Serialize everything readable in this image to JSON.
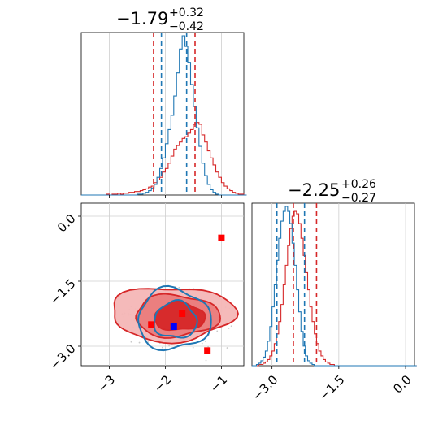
{
  "chart_data": {
    "type": "corner",
    "series_colors": {
      "red": "#d62728",
      "blue": "#1f77b4"
    },
    "panels": [
      {
        "panel": "marginal-param1",
        "type": "histogram",
        "title": {
          "median": "−1.79",
          "upper": "+0.32",
          "lower": "−0.42"
        },
        "xlim": [
          -3.5,
          -0.6
        ],
        "red_quantile_lines": [
          -2.21,
          -1.47
        ],
        "blue_quantile_lines": [
          -2.07,
          -1.62
        ],
        "red_hist": {
          "bin_start": -3.5,
          "bin_width": 0.05,
          "counts": [
            0,
            0,
            0,
            0,
            0,
            0,
            0,
            0,
            0,
            1,
            0,
            1,
            1,
            2,
            1,
            2,
            2,
            3,
            3,
            4,
            4,
            5,
            6,
            7,
            9,
            10,
            14,
            17,
            20,
            26,
            30,
            36,
            44,
            52,
            56,
            60,
            64,
            66,
            70,
            74,
            80,
            82,
            80,
            68,
            60,
            50,
            42,
            34,
            26,
            20,
            14,
            10,
            7,
            5,
            3,
            2,
            1,
            1,
            0
          ]
        },
        "blue_hist": {
          "bin_start": -3.5,
          "bin_width": 0.05,
          "counts": [
            0,
            0,
            0,
            0,
            0,
            0,
            0,
            0,
            0,
            0,
            0,
            0,
            0,
            0,
            0,
            0,
            0,
            0,
            0,
            0,
            1,
            1,
            2,
            3,
            5,
            8,
            12,
            20,
            30,
            42,
            58,
            74,
            90,
            112,
            138,
            165,
            180,
            168,
            150,
            125,
            100,
            76,
            55,
            36,
            22,
            12,
            6,
            3,
            1,
            0,
            0,
            0,
            0,
            0,
            0,
            0,
            0,
            0,
            0
          ]
        }
      },
      {
        "panel": "joint-param1-param2",
        "type": "contour",
        "xlim": [
          -3.5,
          -0.6
        ],
        "ylim": [
          -3.45,
          0.3
        ],
        "x_ticks": [
          "−3",
          "−2",
          "−1"
        ],
        "y_ticks": [
          "0.0",
          "−1.5",
          "−3.0"
        ],
        "red_contours": [
          {
            "level": "outer",
            "cx": -1.88,
            "cy": -2.25,
            "rx": 1.1,
            "ry": 0.62
          },
          {
            "level": "middle",
            "cx": -1.8,
            "cy": -2.3,
            "rx": 0.75,
            "ry": 0.48
          },
          {
            "level": "inner",
            "cx": -1.75,
            "cy": -2.32,
            "rx": 0.45,
            "ry": 0.32
          }
        ],
        "blue_contours": [
          {
            "level": "outer",
            "cx": -1.85,
            "cy": -2.38,
            "rx": 0.65,
            "ry": 0.7
          },
          {
            "level": "inner",
            "cx": -1.82,
            "cy": -2.4,
            "rx": 0.38,
            "ry": 0.42
          }
        ],
        "red_markers": [
          {
            "x": -1.0,
            "y": -0.5
          },
          {
            "x": -2.25,
            "y": -2.5
          },
          {
            "x": -1.7,
            "y": -2.25
          },
          {
            "x": -1.25,
            "y": -3.1
          }
        ],
        "blue_markers": [
          {
            "x": -1.85,
            "y": -2.55
          }
        ]
      },
      {
        "panel": "marginal-param2",
        "type": "histogram",
        "title": {
          "median": "−2.25",
          "upper": "+0.26",
          "lower": "−0.27"
        },
        "xlim": [
          -3.45,
          0.2
        ],
        "x_ticks": [
          "−3.0",
          "−1.5",
          "0.0"
        ],
        "red_quantile_lines": [
          -2.52,
          -2.0
        ],
        "blue_quantile_lines": [
          -2.89,
          -2.27
        ],
        "red_hist": {
          "bin_start": -3.45,
          "bin_width": 0.05,
          "counts": [
            0,
            0,
            0,
            1,
            1,
            2,
            3,
            5,
            8,
            12,
            18,
            26,
            36,
            50,
            66,
            82,
            98,
            112,
            122,
            126,
            124,
            116,
            104,
            90,
            76,
            62,
            48,
            36,
            26,
            18,
            12,
            8,
            5,
            3,
            2,
            1,
            1,
            0,
            0,
            0,
            0,
            0,
            0,
            0,
            0,
            0,
            0,
            0,
            0,
            0,
            0,
            0,
            0,
            0,
            0,
            0,
            0,
            0,
            0,
            0,
            0,
            0,
            0,
            0,
            0,
            0,
            0,
            0,
            0,
            0,
            0,
            0,
            0,
            0
          ]
        },
        "blue_hist": {
          "bin_start": -3.45,
          "bin_width": 0.05,
          "counts": [
            0,
            0,
            1,
            2,
            4,
            7,
            12,
            20,
            32,
            48,
            66,
            86,
            104,
            118,
            126,
            130,
            126,
            116,
            100,
            82,
            62,
            44,
            28,
            16,
            8,
            4,
            2,
            1,
            0,
            0,
            0,
            0,
            0,
            0,
            0,
            0,
            0,
            0,
            0,
            0,
            0,
            0,
            0,
            0,
            0,
            0,
            0,
            0,
            0,
            0,
            0,
            0,
            0,
            0,
            0,
            0,
            0,
            0,
            0,
            0,
            0,
            0,
            0,
            0,
            0,
            0,
            0,
            0,
            0,
            0,
            0,
            0,
            0,
            0
          ]
        }
      }
    ]
  }
}
